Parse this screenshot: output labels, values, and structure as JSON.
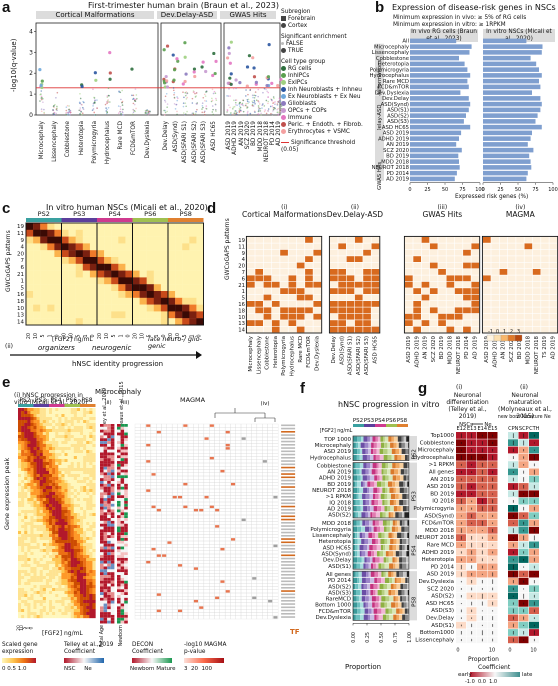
{
  "panels": {
    "a": {
      "letter": "a",
      "title": "First-trimester human brain (Braun et al., 2023)",
      "groups": [
        "Cortical Malformations",
        "Dev.Delay-ASD",
        "GWAS Hits"
      ],
      "ylabel": "-log10(q-value)",
      "y_ticks": [
        "0",
        "1",
        "2",
        "3",
        "4"
      ],
      "x_labels": [
        "Microcephaly",
        "Lissencephaly",
        "Cobblestone",
        "Heterotopia",
        "Polymicrogyria",
        "Hydrocephalus",
        "Rare MCD",
        "FCD&mTOR",
        "Dev.Dyslexia",
        "Dev.Delay",
        "ASD(Synd)",
        "ASD(SFARI S1)",
        "ASD(SFARI S2)",
        "ASD(SFARI S3)",
        "ASD HC65",
        "ASD 2019",
        "ADHD 2019",
        "AN 2019",
        "SCZ 2020",
        "BD 2019",
        "MDD 2018",
        "NEUROT 2018",
        "PD 2014",
        "AD 2019"
      ],
      "legend": {
        "subregion_title": "Subregion",
        "subregion_items": [
          "Forebrain",
          "Cortex"
        ],
        "enrich_title": "Significant enrichment",
        "enrich_items": [
          "FALSE",
          "TRUE"
        ],
        "celltype_title": "Cell type group",
        "celltype_items": [
          {
            "label": "RG cells",
            "color": "#2e6f3e"
          },
          {
            "label": "InhIPCs",
            "color": "#5aa04f"
          },
          {
            "label": "ExIPCs",
            "color": "#9fd080"
          },
          {
            "label": "Inh Neuroblasts + Inhneu",
            "color": "#2a55a0"
          },
          {
            "label": "Ex Neuroblasts + Ex Neu",
            "color": "#6fa8dc"
          },
          {
            "label": "Glioblasts",
            "color": "#8c7bbf"
          },
          {
            "label": "OPCs + COPs",
            "color": "#c79ad0"
          },
          {
            "label": "Immune",
            "color": "#e377c2"
          },
          {
            "label": "Peric. + Endoth. + Fibrob.",
            "color": "#c0504d"
          },
          {
            "label": "Erythrocytes + VSMC",
            "color": "#f4a0a0"
          }
        ],
        "threshold_label": "Significance threshold (0.05)"
      }
    },
    "b": {
      "letter": "b",
      "title": "Expression of disease-risk genes in NSCs",
      "subtitle1": "Minimum expression in vivo: ≥ 5% of RG cells",
      "subtitle2": "Minimum expression in vitro: ≥ 1RPKM",
      "col1": "In vivo RG cells (Braun et al., 2023)",
      "col2": "In vitro NSCs (Micali et al., 2020)",
      "groups": [
        "Cortical Malformations",
        "Disease Dev.Delay-ASD",
        "GWAS Hits"
      ],
      "rows": [
        "All",
        "Microcephaly",
        "Lissencephaly",
        "Cobblestone",
        "Heterotopia",
        "Polymicrogyria",
        "Hydrocephalus",
        "Rare MCD",
        "FCD&mTOR",
        "Dev.Dyslexia",
        "Dev.Delay",
        "ASD(Synd)",
        "ASD(S1)",
        "ASD(S2)",
        "ASD(S3)",
        "ASD HC65",
        "ASD 2019",
        "ADHD 2019",
        "AN 2019",
        "SCZ 2020",
        "BD 2019",
        "MDD 2018",
        "NEUROT 2018",
        "PD 2014",
        "AD 2019"
      ],
      "x_ticks": [
        "0",
        "25",
        "50",
        "75",
        "100"
      ],
      "xlabel": "Expressed risk genes (%)",
      "chart_data": {
        "type": "bar",
        "categories": [
          "All",
          "Microcephaly",
          "Lissencephaly",
          "Cobblestone",
          "Heterotopia",
          "Polymicrogyria",
          "Hydrocephalus",
          "Rare MCD",
          "FCD&mTOR",
          "Dev.Dyslexia",
          "Dev.Delay",
          "ASD(Synd)",
          "ASD(S1)",
          "ASD(S2)",
          "ASD(S3)",
          "ASD HC65",
          "ASD 2019",
          "ADHD 2019",
          "AN 2019",
          "SCZ 2020",
          "BD 2019",
          "MDD 2018",
          "NEUROT 2018",
          "PD 2014",
          "AD 2019"
        ],
        "series": [
          {
            "name": "In vivo RG cells (Braun et al., 2023)",
            "values": [
              66,
              88,
              85,
              70,
              78,
              82,
              86,
              82,
              84,
              72,
              84,
              86,
              84,
              80,
              77,
              86,
              73,
              70,
              66,
              74,
              69,
              70,
              71,
              67,
              64
            ]
          },
          {
            "name": "In vitro NSCs (Micali et al., 2020)",
            "values": [
              62,
              85,
              84,
              68,
              76,
              80,
              84,
              80,
              82,
              70,
              82,
              84,
              82,
              78,
              75,
              84,
              70,
              68,
              64,
              72,
              66,
              68,
              69,
              64,
              62
            ]
          }
        ],
        "xlim": [
          0,
          100
        ]
      }
    },
    "c": {
      "letter": "c",
      "title": "In vitro human NSCs (Micali et al., 2020)",
      "stages": [
        "PS2",
        "PS3",
        "PS4",
        "PS6",
        "PS8"
      ],
      "ylabel": "GWCoGAPS patterns",
      "patterns": [
        "19",
        "11",
        "9",
        "4",
        "20",
        "7",
        "6",
        "21",
        "1",
        "5",
        "16",
        "18",
        "10",
        "13",
        "14"
      ],
      "fgf_label": "[FGF2] ng/mL",
      "fgf_ticks": [
        "20",
        "10",
        "5",
        "1",
        "0",
        "20",
        "10",
        "5",
        "1",
        "0",
        "20",
        "10",
        "5",
        "1",
        "0",
        "20",
        "10",
        "5",
        "1",
        "0",
        "20",
        "10",
        "5",
        "1",
        "0"
      ],
      "progression": "hNSC identity progression",
      "arrow_labels": [
        "organizers",
        "neurogenic",
        "late neuro-/ glio-genic"
      ]
    },
    "d": {
      "letter": "d",
      "subpanels": [
        {
          "num": "(i)",
          "title": "Cortical Malformations",
          "cols": [
            "Microcephaly",
            "Lissencephaly",
            "Cobblestone",
            "Heterotopia",
            "Polymicrogyria",
            "Hydrocephalus",
            "Rare MCD",
            "FCD&mTOR",
            "Dev.Dyslexia"
          ]
        },
        {
          "num": "(ii)",
          "title": "Dev.Delay-ASD",
          "cols": [
            "Dev.Delay",
            "ASD(Synd)",
            "ASD(SFARI S1)",
            "ASD(SFARI S2)",
            "ASD(SFARI S3)",
            "ASD HC65"
          ]
        },
        {
          "num": "(iii)",
          "title": "GWAS Hits",
          "cols": [
            "ASD 2019",
            "ADHD 2019",
            "AN 2019",
            "SCZ 2020",
            "BD 2019",
            "MDD 2018",
            "NEUROT 2018",
            "PD 2014",
            "AD 2019"
          ]
        },
        {
          "num": "(iv)",
          "title": "MAGMA",
          "cols": [
            "ASD 2019",
            "ADHD 2019",
            "AN 2019",
            "SCZ 2020",
            "BD 2019",
            "MDD 2018",
            "NEUROT 2018",
            "TS 2019",
            "AD 2019"
          ]
        }
      ],
      "ylabel": "GWCoGAPS patterns",
      "legend_values": [
        "-1",
        "0",
        "1",
        "2",
        "3"
      ],
      "legend_label": "Enrichment"
    },
    "e": {
      "letter": "e",
      "sub_i": "(i) hNSC progression in vitro (Micali et al., 2020)",
      "stages": [
        "PS2",
        "PS3",
        "PS4",
        "PS6",
        "PS8"
      ],
      "sub_micro": "Microcephaly",
      "sub_ii": "(ii)",
      "sub_ii_title": "Telley et al., 2019",
      "sub_iii": "(iii)",
      "sub_iii_title": "Molyneaux et al., 2015",
      "sub_iv": "(iv)",
      "sub_iv_title": "MAGMA",
      "ylabel": "Gene expression peak",
      "fgf_label": "[FGF2] ng/mL",
      "axis_labels": [
        "Fetal Age",
        "Newborn"
      ],
      "tf_label": "TF",
      "legends": {
        "scaled": "Scaled gene expression",
        "scaled_ticks": [
          "0",
          "0.5",
          "1.0"
        ],
        "telley": "Telley et al.,2019 Coefficient",
        "telley_ticks": [
          "NSC",
          "Ne"
        ],
        "decon": "DECON Coefficient",
        "decon_ticks": [
          "Newborn",
          "Mature"
        ],
        "magma": "-log10 MAGMA p-value",
        "magma_ticks": [
          "3",
          "20",
          "100"
        ]
      }
    },
    "f": {
      "letter": "f",
      "title": "hNSC progression in vitro",
      "legend_stages": [
        "PS2",
        "PS3",
        "PS4",
        "PS6",
        "PS8"
      ],
      "fgf_label": "[FGF2] ng/mL",
      "blocks": [
        {
          "stage": "PS2",
          "rows": [
            "TOP 1000",
            "Microcephaly",
            "ASD 2019",
            "Hydrocephalus"
          ]
        },
        {
          "stage": "PS3",
          "rows": [
            "Cobblestone",
            "AN 2019",
            "ADHD 2019",
            "BD 2019",
            "NEUROT 2018",
            ">1 RPKM",
            "IQ 2018",
            "AD 2019",
            "ASD(S2)"
          ]
        },
        {
          "stage": "PS4",
          "rows": [
            "MDD 2018",
            "Polymicrogyria",
            "Lissencephaly",
            "Heterotopia",
            "ASD HC65",
            "ASD(Synd)",
            "Dev.Delay",
            "ASD(S1)"
          ]
        },
        {
          "stage": "PS8",
          "rows": [
            "All genes",
            "PD 2014",
            "ASD(S2)",
            "ASD(S3)",
            "RareMCD",
            "Bottom 1000",
            "FCD&mTOR",
            "Dev.Dyslexia"
          ]
        }
      ],
      "x_ticks": [
        "0.00",
        "0.25",
        "0.50",
        "0.75",
        "1.00"
      ],
      "xlabel": "Proportion"
    },
    "g": {
      "letter": "g",
      "sub_i_num": "(i)",
      "sub_i_title": "Neuronal differentiation (Telley et al., 2019)",
      "sub_ii_num": "(ii)",
      "sub_ii_title": "Neuronal maturation (Molyneaux et al., 2015)",
      "i_cols": [
        "E12",
        "E13",
        "E14",
        "E15"
      ],
      "ii_cols": [
        "CPN",
        "SCP",
        "CTH"
      ],
      "i_legend": [
        "NSCs",
        "Ne"
      ],
      "ii_legend": [
        "new born Ne",
        "mature Ne"
      ],
      "rows": [
        "Top1000",
        "Cobblestone",
        "Microcephaly",
        "Hydrocephalus",
        ">1 RPKM",
        "All genes",
        "AN 2019",
        "ASD 2019",
        "BD 2019",
        "IQ 2018",
        "Polymicrogyria",
        "ASD(Synd)",
        "FCD&mTOR",
        "MDD 2018",
        "NEUROT 2018",
        "Rare MCD",
        "ADHD 2019",
        "Heterotopia",
        "PD 2014",
        "ASD 2019",
        "Dev.Dyslexia",
        "SCZ 2020",
        "ASD(S2)",
        "ASD HC65",
        "ASD(S3)",
        "Dev.Delay",
        "ASD(S1)",
        "Bottom1000",
        "Lissencephaly"
      ],
      "x_ticks": [
        "0",
        "10",
        "0",
        "10"
      ],
      "xlabel": "Proportion",
      "coef_title": "Coefficient",
      "coef_ends": [
        "early",
        "late"
      ],
      "coef_ticks": [
        "-1.0",
        "0.0",
        "1.0"
      ]
    }
  }
}
